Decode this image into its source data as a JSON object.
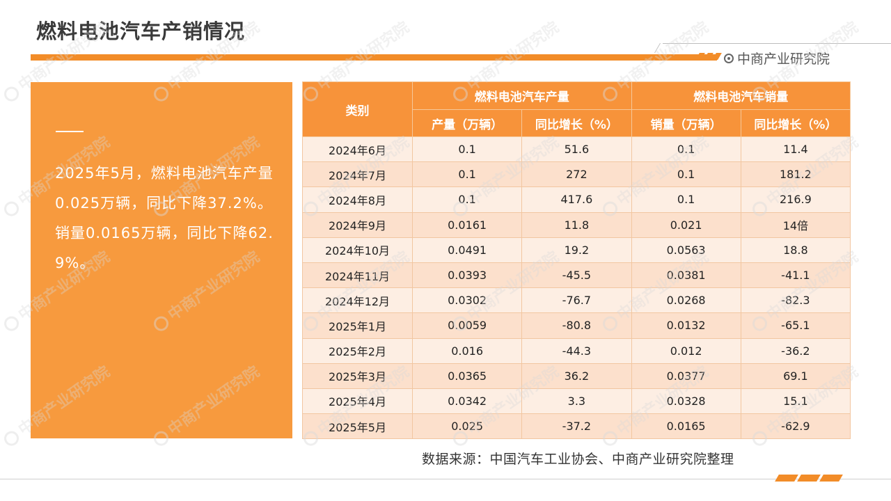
{
  "title": "燃料电池汽车产销情况",
  "brand": {
    "name": "中商产业研究院",
    "icon": "circle-dot-icon"
  },
  "summary": "2025年5月，燃料电池汽车产量0.025万辆，同比下降37.2%。销量0.0165万辆，同比下降62.9%。",
  "table": {
    "category_header": "类别",
    "group_production": "燃料电池汽车产量",
    "group_sales": "燃料电池汽车销量",
    "col_production": "产量（万辆）",
    "col_production_yoy": "同比增长（%）",
    "col_sales": "销量（万辆）",
    "col_sales_yoy": "同比增长（%）",
    "rows": [
      {
        "month": "2024年6月",
        "production": "0.1",
        "production_yoy": "51.6",
        "sales": "0.1",
        "sales_yoy": "11.4"
      },
      {
        "month": "2024年7月",
        "production": "0.1",
        "production_yoy": "272",
        "sales": "0.1",
        "sales_yoy": "181.2"
      },
      {
        "month": "2024年8月",
        "production": "0.1",
        "production_yoy": "417.6",
        "sales": "0.1",
        "sales_yoy": "216.9"
      },
      {
        "month": "2024年9月",
        "production": "0.0161",
        "production_yoy": "11.8",
        "sales": "0.021",
        "sales_yoy": "14倍"
      },
      {
        "month": "2024年10月",
        "production": "0.0491",
        "production_yoy": "19.2",
        "sales": "0.0563",
        "sales_yoy": "18.8"
      },
      {
        "month": "2024年11月",
        "production": "0.0393",
        "production_yoy": "-45.5",
        "sales": "0.0381",
        "sales_yoy": "-41.1"
      },
      {
        "month": "2024年12月",
        "production": "0.0302",
        "production_yoy": "-76.7",
        "sales": "0.0268",
        "sales_yoy": "-82.3"
      },
      {
        "month": "2025年1月",
        "production": "0.0059",
        "production_yoy": "-80.8",
        "sales": "0.0132",
        "sales_yoy": "-65.1"
      },
      {
        "month": "2025年2月",
        "production": "0.016",
        "production_yoy": "-44.3",
        "sales": "0.012",
        "sales_yoy": "-36.2"
      },
      {
        "month": "2025年3月",
        "production": "0.0365",
        "production_yoy": "36.2",
        "sales": "0.0377",
        "sales_yoy": "69.1"
      },
      {
        "month": "2025年4月",
        "production": "0.0342",
        "production_yoy": "3.3",
        "sales": "0.0328",
        "sales_yoy": "15.1"
      },
      {
        "month": "2025年5月",
        "production": "0.025",
        "production_yoy": "-37.2",
        "sales": "0.0165",
        "sales_yoy": "-62.9"
      }
    ]
  },
  "source": "数据来源：中国汽车工业协会、中商产业研究院整理",
  "watermark": "中商产业研究院",
  "colors": {
    "accent": "#f28c28",
    "panel": "#f79a3e",
    "header": "#f7933a",
    "row_odd": "#fce0cc",
    "row_even": "#fdeee3"
  }
}
